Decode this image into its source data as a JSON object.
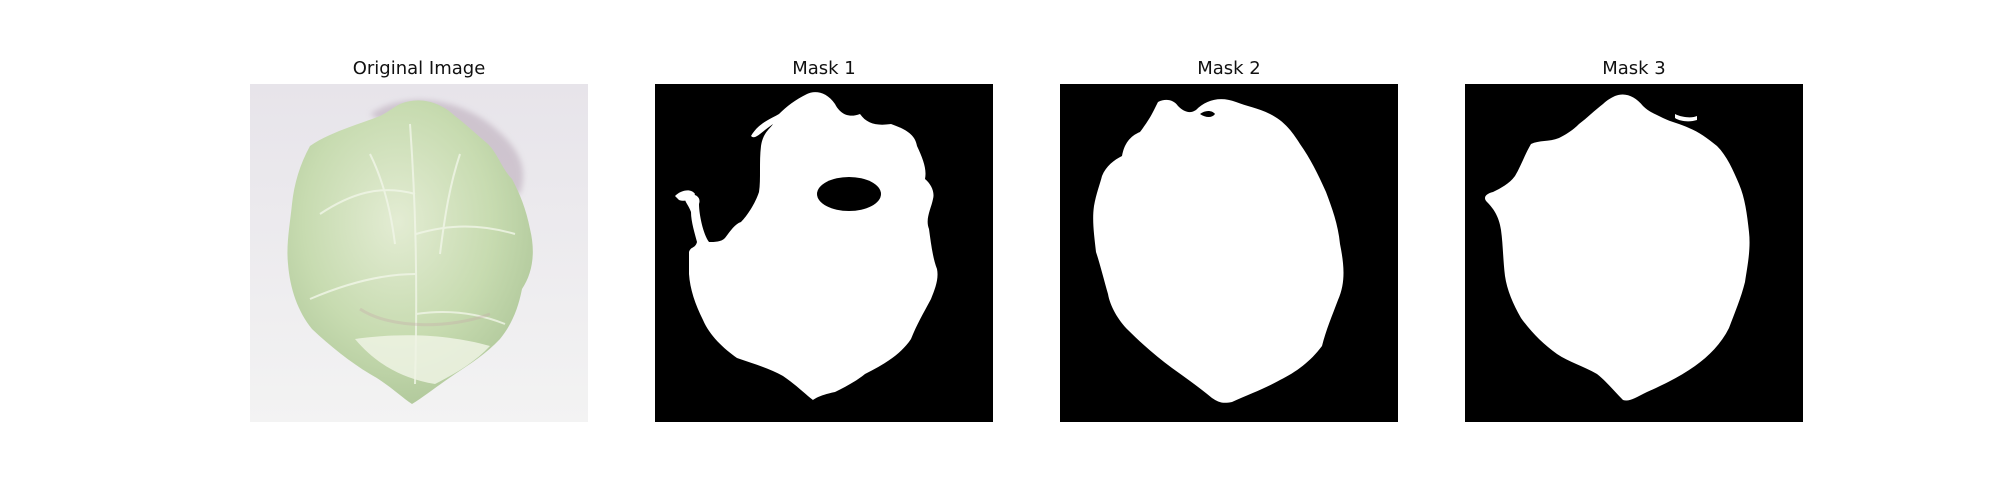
{
  "figure": {
    "panels": [
      {
        "title": "Original Image",
        "kind": "photo"
      },
      {
        "title": "Mask 1",
        "kind": "mask"
      },
      {
        "title": "Mask 2",
        "kind": "mask"
      },
      {
        "title": "Mask 3",
        "kind": "mask"
      }
    ],
    "colors": {
      "mask_background": "#000000",
      "mask_foreground": "#ffffff",
      "photo_background": "#ecebee",
      "leaf_light": "#d9e7c8",
      "leaf_mid": "#bcd4a6",
      "leaf_dark": "#9fb98a"
    }
  }
}
